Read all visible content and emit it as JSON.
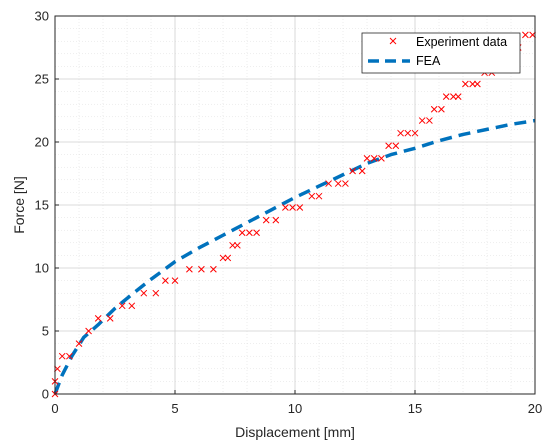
{
  "chart_data": {
    "type": "line",
    "title": "",
    "xlabel": "Displacement [mm]",
    "ylabel": "Force [N]",
    "xlim": [
      0,
      20
    ],
    "ylim": [
      0,
      30
    ],
    "xticks": [
      0,
      5,
      10,
      15,
      20
    ],
    "yticks": [
      0,
      5,
      10,
      15,
      20,
      25,
      30
    ],
    "grid": true,
    "minor_grid": true,
    "legend_position": "top-right",
    "series": [
      {
        "name": "Experiment data",
        "kind": "scatter",
        "marker": "x",
        "color": "#ff0000",
        "points": [
          [
            0.0,
            0.0
          ],
          [
            0.0,
            1.0
          ],
          [
            0.1,
            2.0
          ],
          [
            0.3,
            3.0
          ],
          [
            0.6,
            3.0
          ],
          [
            1.0,
            4.0
          ],
          [
            1.4,
            5.0
          ],
          [
            1.8,
            6.0
          ],
          [
            2.3,
            6.0
          ],
          [
            2.8,
            7.0
          ],
          [
            3.2,
            7.0
          ],
          [
            3.7,
            8.0
          ],
          [
            4.2,
            8.0
          ],
          [
            4.6,
            9.0
          ],
          [
            5.0,
            9.0
          ],
          [
            5.6,
            9.9
          ],
          [
            6.1,
            9.9
          ],
          [
            6.6,
            9.9
          ],
          [
            7.0,
            10.8
          ],
          [
            7.2,
            10.8
          ],
          [
            7.4,
            11.8
          ],
          [
            7.6,
            11.8
          ],
          [
            7.8,
            12.8
          ],
          [
            8.1,
            12.8
          ],
          [
            8.4,
            12.8
          ],
          [
            8.8,
            13.8
          ],
          [
            9.2,
            13.8
          ],
          [
            9.6,
            14.8
          ],
          [
            9.9,
            14.8
          ],
          [
            10.2,
            14.8
          ],
          [
            10.7,
            15.7
          ],
          [
            11.0,
            15.7
          ],
          [
            11.4,
            16.7
          ],
          [
            11.8,
            16.7
          ],
          [
            12.1,
            16.7
          ],
          [
            12.4,
            17.7
          ],
          [
            12.8,
            17.7
          ],
          [
            13.0,
            18.7
          ],
          [
            13.3,
            18.7
          ],
          [
            13.6,
            18.7
          ],
          [
            13.9,
            19.7
          ],
          [
            14.2,
            19.7
          ],
          [
            14.4,
            20.7
          ],
          [
            14.7,
            20.7
          ],
          [
            15.0,
            20.7
          ],
          [
            15.3,
            21.7
          ],
          [
            15.6,
            21.7
          ],
          [
            15.8,
            22.6
          ],
          [
            16.1,
            22.6
          ],
          [
            16.3,
            23.6
          ],
          [
            16.6,
            23.6
          ],
          [
            16.8,
            23.6
          ],
          [
            17.1,
            24.6
          ],
          [
            17.4,
            24.6
          ],
          [
            17.6,
            24.6
          ],
          [
            17.9,
            25.5
          ],
          [
            18.2,
            25.5
          ],
          [
            18.4,
            26.5
          ],
          [
            18.7,
            26.5
          ],
          [
            19.0,
            27.5
          ],
          [
            19.3,
            27.5
          ],
          [
            19.6,
            28.5
          ],
          [
            19.9,
            28.5
          ]
        ]
      },
      {
        "name": "FEA",
        "kind": "line",
        "style": "dashed",
        "color": "#0072bd",
        "points": [
          [
            0.0,
            0.0
          ],
          [
            0.3,
            1.5
          ],
          [
            0.7,
            3.0
          ],
          [
            1.2,
            4.5
          ],
          [
            1.8,
            5.5
          ],
          [
            2.5,
            6.8
          ],
          [
            3.2,
            7.9
          ],
          [
            4.0,
            9.1
          ],
          [
            5.0,
            10.5
          ],
          [
            6.0,
            11.6
          ],
          [
            7.0,
            12.6
          ],
          [
            8.0,
            13.6
          ],
          [
            9.0,
            14.6
          ],
          [
            10.0,
            15.6
          ],
          [
            11.0,
            16.5
          ],
          [
            12.0,
            17.4
          ],
          [
            13.0,
            18.3
          ],
          [
            14.0,
            19.0
          ],
          [
            15.0,
            19.5
          ],
          [
            16.0,
            20.1
          ],
          [
            17.0,
            20.6
          ],
          [
            18.0,
            21.0
          ],
          [
            19.0,
            21.4
          ],
          [
            20.0,
            21.7
          ]
        ]
      }
    ]
  }
}
